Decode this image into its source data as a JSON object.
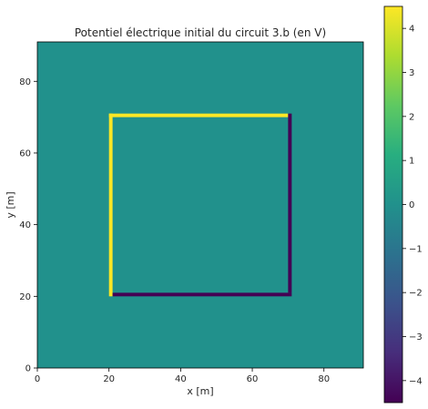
{
  "chart_data": {
    "type": "heatmap",
    "title": "Potentiel électrique initial du circuit 3.b (en V)",
    "xlabel": "x [m]",
    "ylabel": "y [m]",
    "xlim": [
      0,
      91
    ],
    "ylim": [
      0,
      91
    ],
    "xticks": [
      0,
      20,
      40,
      60,
      80
    ],
    "yticks": [
      0,
      20,
      40,
      60,
      80
    ],
    "background_value": 0,
    "segments": [
      {
        "name": "",
        "value": 4.5,
        "x": [
          20,
          70
        ],
        "y": [
          70,
          71
        ]
      },
      {
        "name": "",
        "value": 4.5,
        "x": [
          20,
          21
        ],
        "y": [
          20,
          71
        ]
      },
      {
        "name": "",
        "value": -4.5,
        "x": [
          21,
          71
        ],
        "y": [
          20,
          21
        ]
      },
      {
        "name": "",
        "value": -4.5,
        "x": [
          70,
          71
        ],
        "y": [
          21,
          71
        ]
      }
    ],
    "colorbar": {
      "vmin": -4.5,
      "vmax": 4.5,
      "ticks": [
        4,
        3,
        2,
        1,
        0,
        -1,
        -2,
        -3,
        -4
      ],
      "tick_labels": [
        "4",
        "3",
        "2",
        "1",
        "0",
        "−1",
        "−2",
        "−3",
        "−4"
      ],
      "colormap": "viridis"
    },
    "grid": false,
    "legend": "none"
  }
}
